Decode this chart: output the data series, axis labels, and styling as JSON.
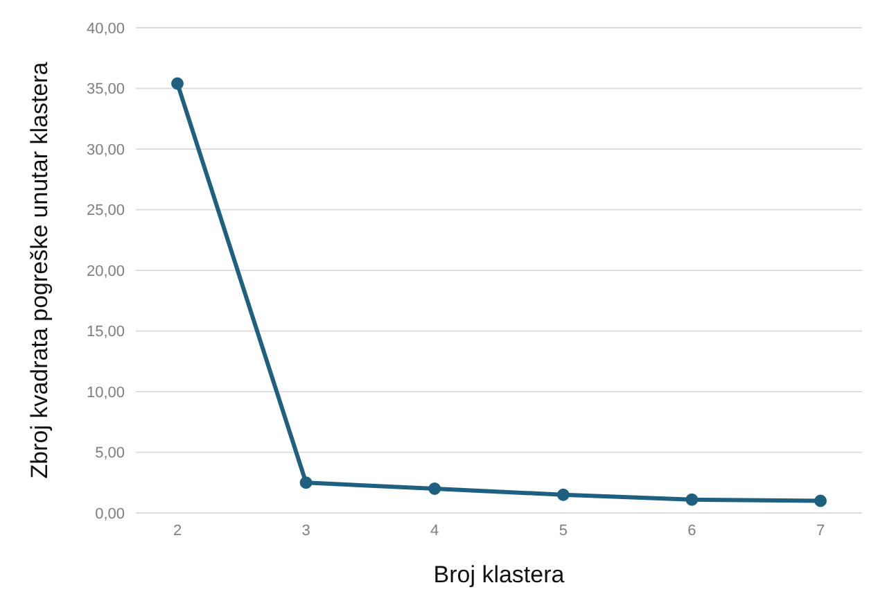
{
  "chart_data": {
    "type": "line",
    "xlabel": "Broj klastera",
    "ylabel": "Zbroj kvadrata pogreške unutar klastera",
    "categories": [
      "2",
      "3",
      "4",
      "5",
      "6",
      "7"
    ],
    "series": [
      {
        "color": "#1f5f7f",
        "values": [
          35.4,
          2.5,
          2.0,
          1.5,
          1.1,
          1.0
        ]
      }
    ],
    "ylim": [
      0,
      40
    ],
    "yticks": [
      {
        "value": 0,
        "label": "0,00"
      },
      {
        "value": 5,
        "label": "5,00"
      },
      {
        "value": 10,
        "label": "10,00"
      },
      {
        "value": 15,
        "label": "15,00"
      },
      {
        "value": 20,
        "label": "20,00"
      },
      {
        "value": 25,
        "label": "25,00"
      },
      {
        "value": 30,
        "label": "30,00"
      },
      {
        "value": 35,
        "label": "35,00"
      },
      {
        "value": 40,
        "label": "40,00"
      }
    ],
    "grid": "y",
    "marker": "circle",
    "line_style": "solid"
  }
}
